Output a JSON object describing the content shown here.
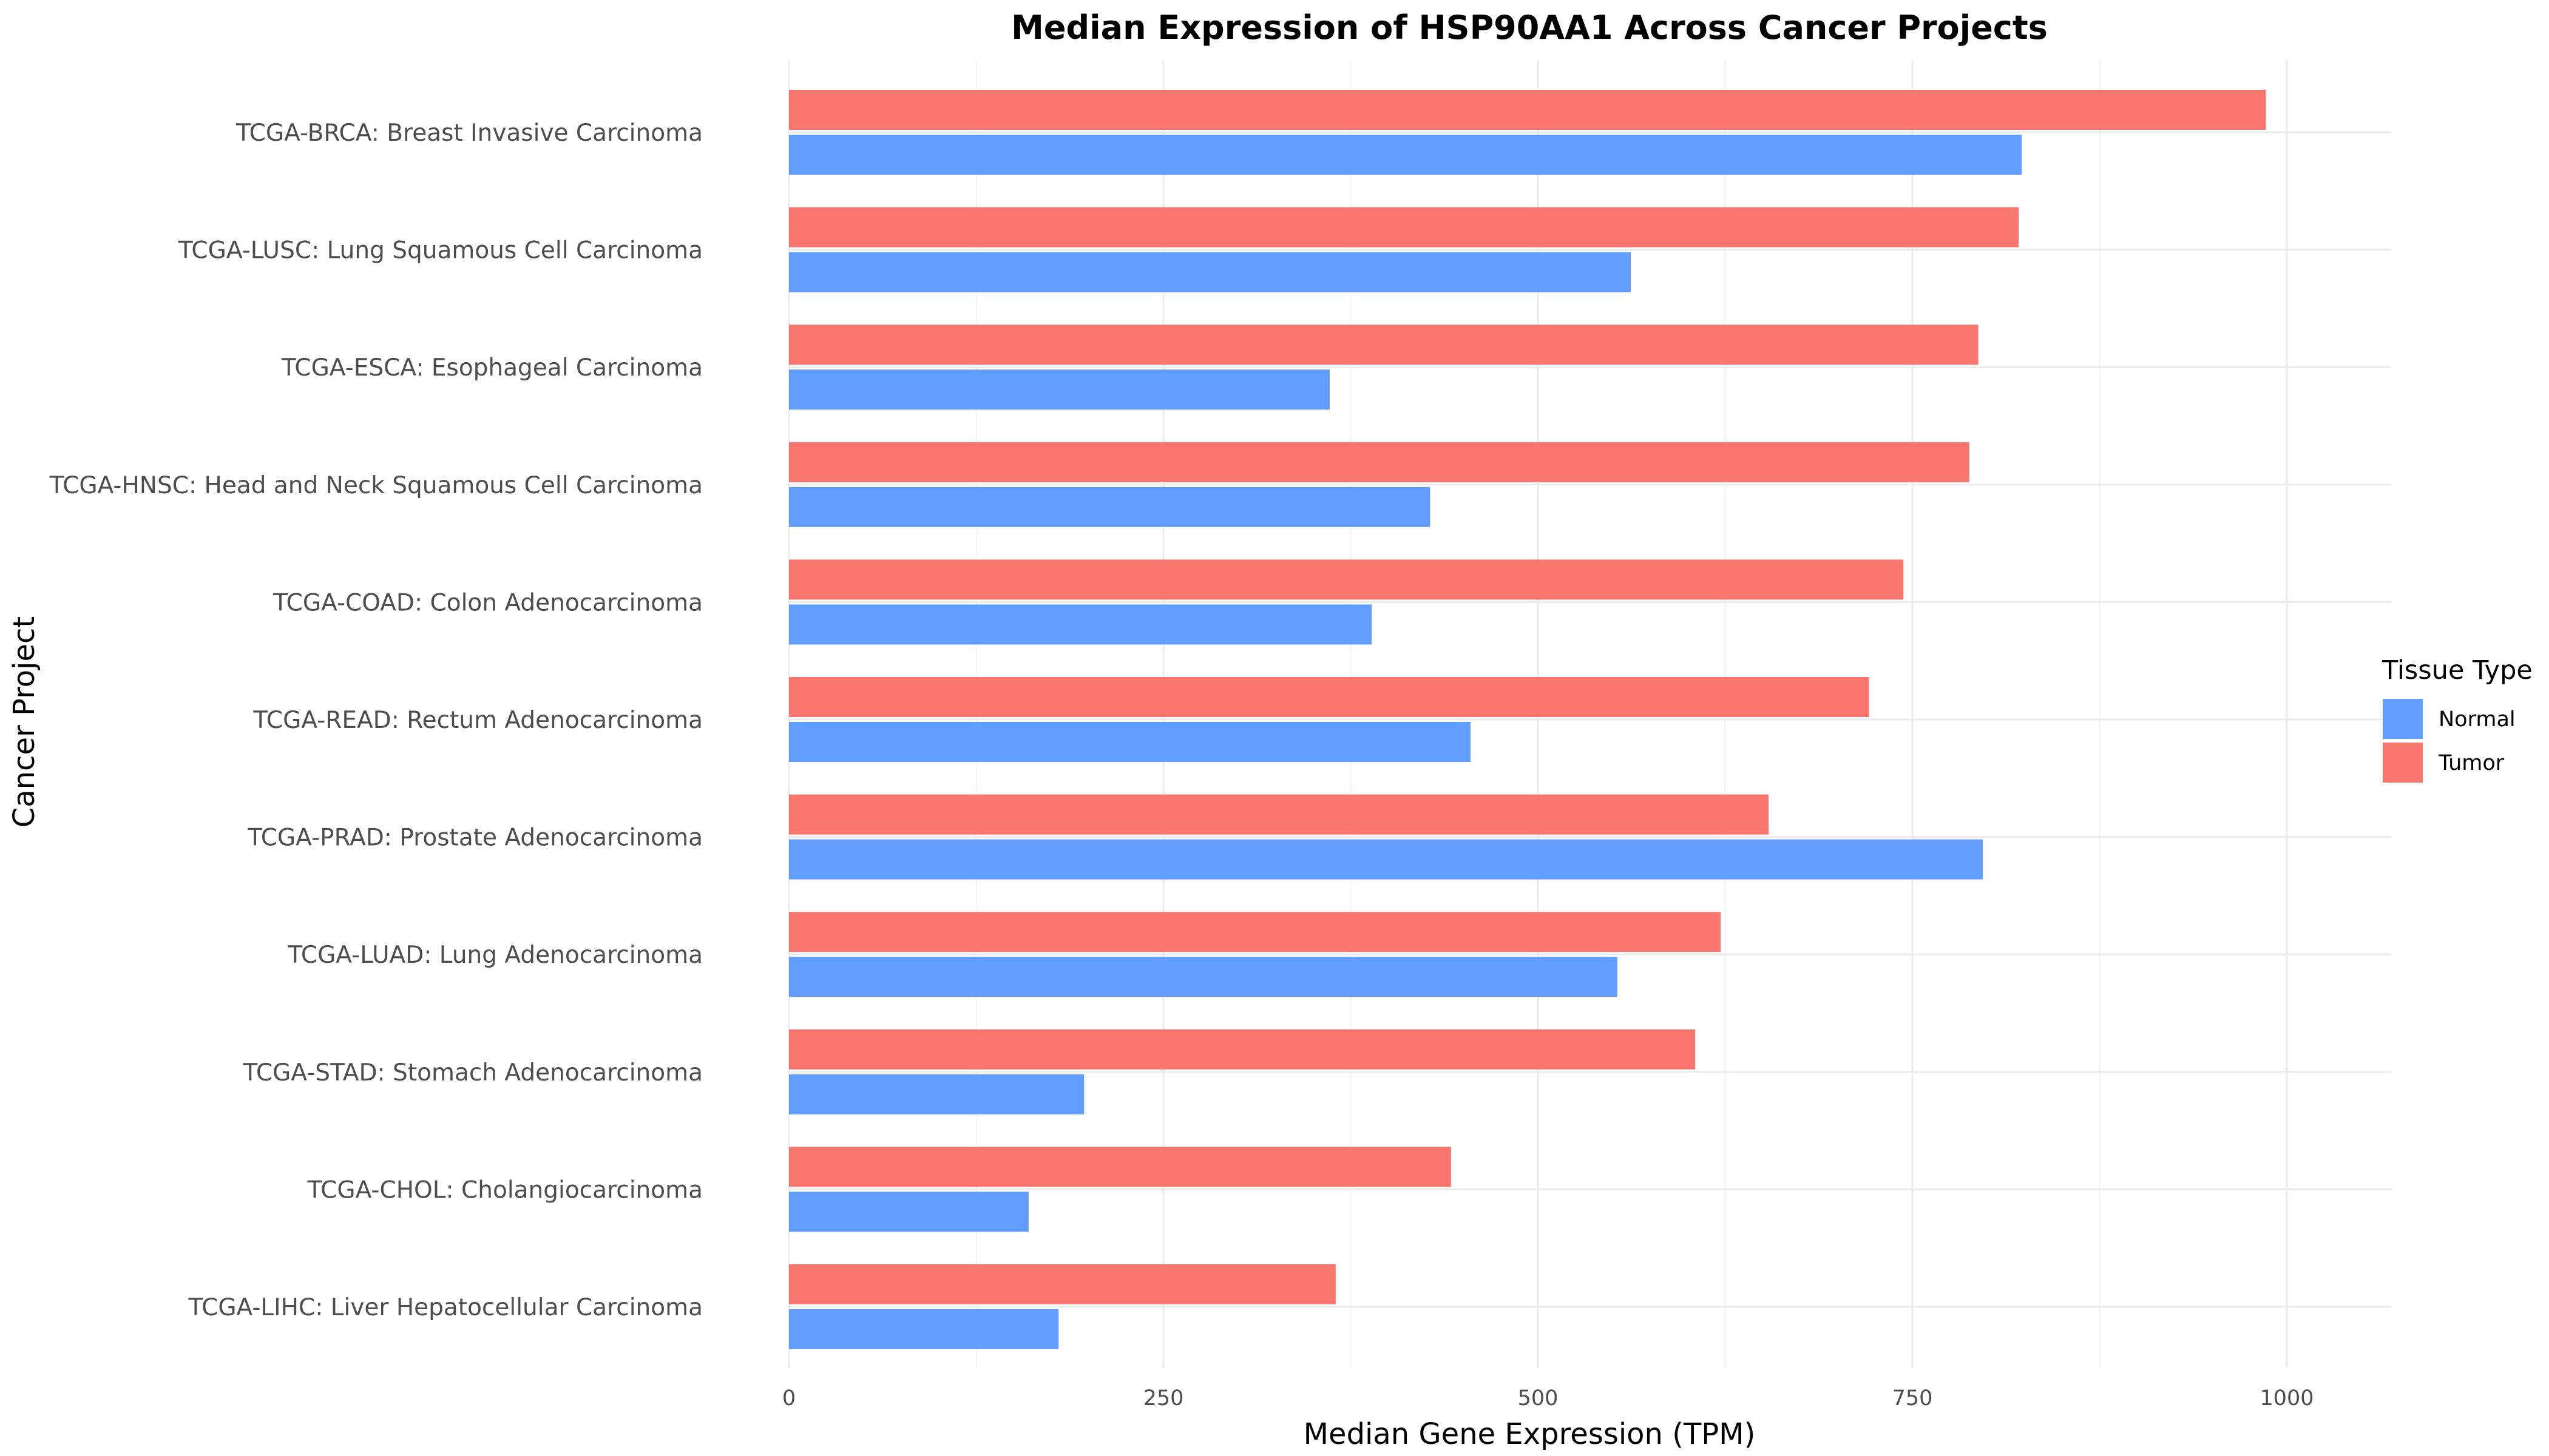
{
  "chart_data": {
    "type": "bar",
    "orientation": "horizontal",
    "title": "Median Expression of HSP90AA1 Across Cancer Projects",
    "xlabel": "Median Gene Expression (TPM)",
    "ylabel": "Cancer Project",
    "xlim": [
      0,
      1050
    ],
    "xticks": [
      0,
      250,
      500,
      750,
      1000
    ],
    "xtick_labels": [
      "0",
      "250",
      "500",
      "750",
      "1000"
    ],
    "grid": true,
    "legend_position": "right",
    "legend_title": "Tissue Type",
    "categories": [
      "TCGA-BRCA: Breast Invasive Carcinoma",
      "TCGA-LUSC: Lung Squamous Cell Carcinoma",
      "TCGA-ESCA: Esophageal Carcinoma",
      "TCGA-HNSC: Head and Neck Squamous Cell Carcinoma",
      "TCGA-COAD: Colon Adenocarcinoma",
      "TCGA-READ: Rectum Adenocarcinoma",
      "TCGA-PRAD: Prostate Adenocarcinoma",
      "TCGA-LUAD: Lung Adenocarcinoma",
      "TCGA-STAD: Stomach Adenocarcinoma",
      "TCGA-CHOL: Cholangiocarcinoma",
      "TCGA-LIHC: Liver Hepatocellular Carcinoma"
    ],
    "series": [
      {
        "name": "Tumor",
        "color": "#F8766D",
        "values": [
          986,
          821,
          794,
          788,
          744,
          721,
          654,
          622,
          605,
          442,
          365
        ]
      },
      {
        "name": "Normal",
        "color": "#619CFF",
        "values": [
          823,
          562,
          361,
          428,
          389,
          455,
          797,
          553,
          197,
          160,
          180
        ]
      }
    ],
    "legend_order": [
      "Normal",
      "Tumor"
    ]
  }
}
